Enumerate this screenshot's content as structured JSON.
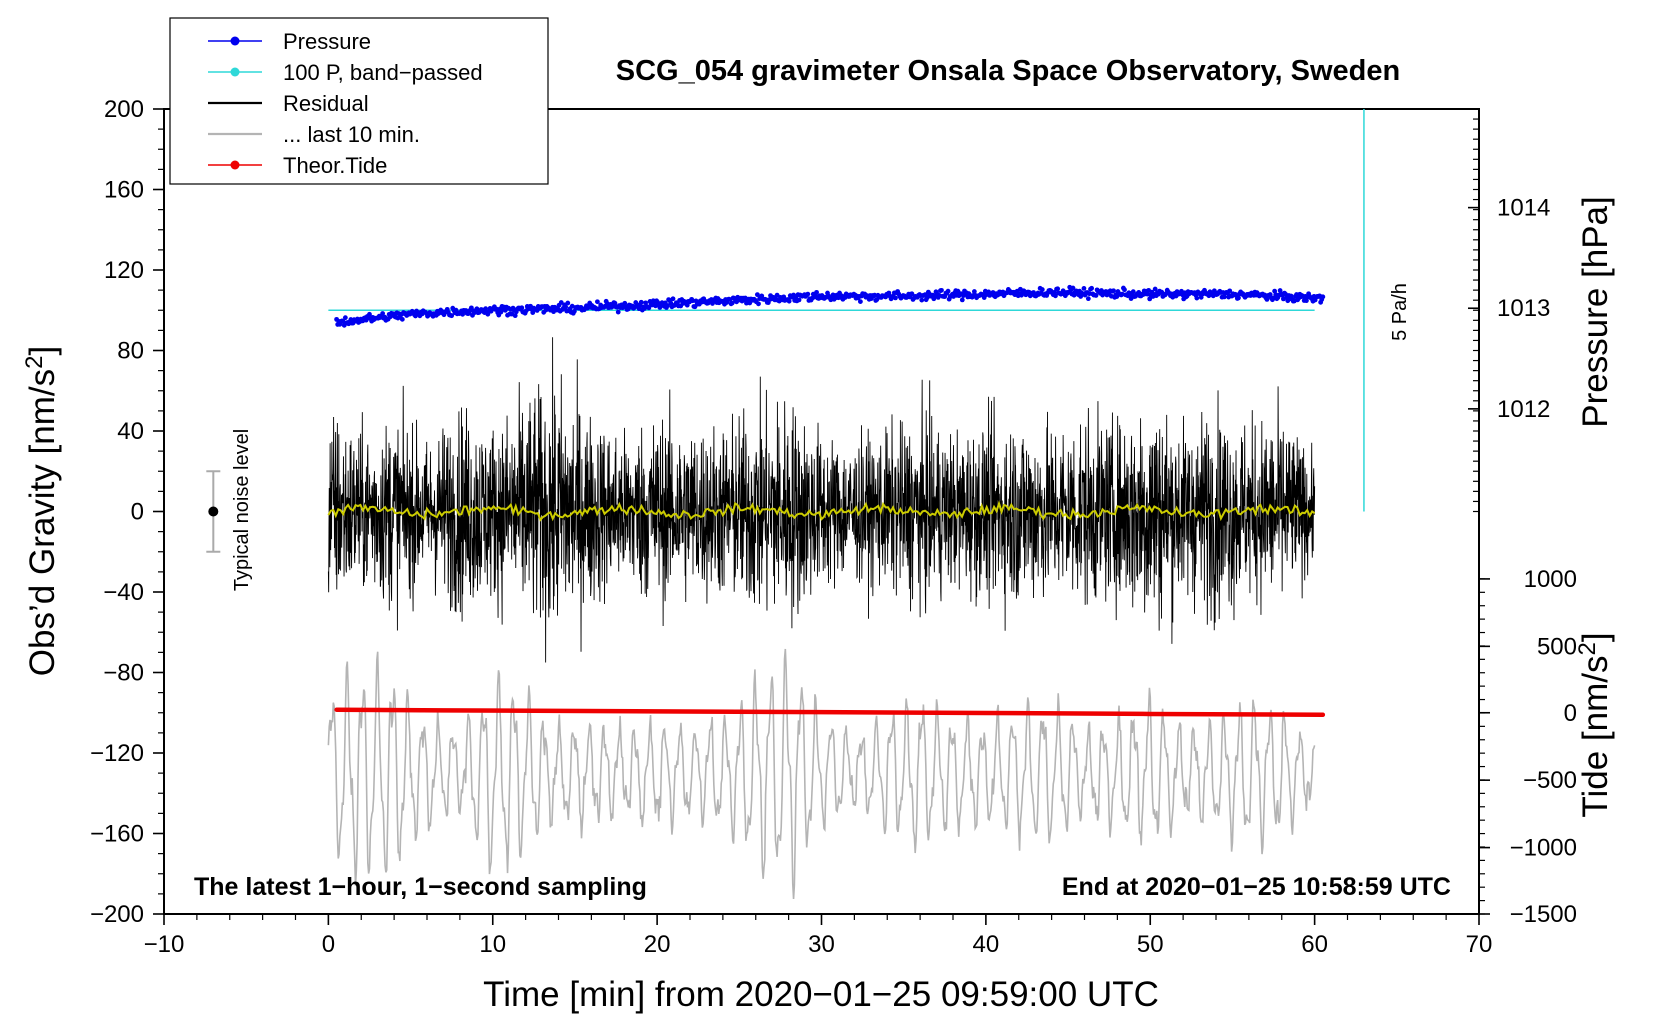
{
  "chart_data": {
    "type": "line",
    "title": "SCG_054 gravimeter Onsala Space Observatory, Sweden",
    "xlabel": "Time [min] from 2020−01−25 09:59:00 UTC",
    "ylabel_left": "Obs’d Gravity [nm/s",
    "ylabel_left_sup": "2",
    "ylabel_left_close": "]",
    "ylabel_pressure": "Pressure [hPa]",
    "ylabel_tide": "Tide [nm/s",
    "ylabel_tide_sup": "2",
    "ylabel_tide_close": "]",
    "xlim": [
      -10,
      70
    ],
    "ylim": [
      -200,
      200
    ],
    "x_ticks": [
      -10,
      0,
      10,
      20,
      30,
      40,
      50,
      60,
      70
    ],
    "x_tick_labels": [
      "−10",
      "0",
      "10",
      "20",
      "30",
      "40",
      "50",
      "60",
      "70"
    ],
    "y_ticks": [
      -200,
      -160,
      -120,
      -80,
      -40,
      0,
      40,
      80,
      120,
      160,
      200
    ],
    "y_tick_labels": [
      "−200",
      "−160",
      "−120",
      "−80",
      "−40",
      "0",
      "40",
      "80",
      "120",
      "160",
      "200"
    ],
    "pressure_ticks": [
      {
        "value": 1012,
        "y_data": 51,
        "label": "1012"
      },
      {
        "value": 1013,
        "y_data": 101,
        "label": "1013"
      },
      {
        "value": 1014,
        "y_data": 151,
        "label": "1014"
      }
    ],
    "tide_ticks": [
      {
        "value": 1000,
        "y_data": -33.5,
        "label": "1000"
      },
      {
        "value": 500,
        "y_data": -67,
        "label": "500"
      },
      {
        "value": 0,
        "y_data": -100,
        "label": "0"
      },
      {
        "value": -500,
        "y_data": -133.5,
        "label": "−500"
      },
      {
        "value": -1000,
        "y_data": -167,
        "label": "−1000"
      },
      {
        "value": -1500,
        "y_data": -200,
        "label": "−1500"
      }
    ],
    "legend": {
      "placement": "top-left",
      "entries": [
        {
          "label": "Pressure",
          "color": "#0000ee",
          "style": "line-dot"
        },
        {
          "label": "100 P, band−passed",
          "color": "#2ed8d8",
          "style": "line-dot"
        },
        {
          "label": "Residual",
          "color": "#000000",
          "style": "line"
        },
        {
          "label": "... last 10 min.",
          "color": "#b4b4b4",
          "style": "line"
        },
        {
          "label": "Theor.Tide",
          "color": "#ee0000",
          "style": "line-dot"
        }
      ]
    },
    "colors": {
      "pressure": "#0000ee",
      "bandpassed": "#2ed8d8",
      "residual": "#000000",
      "last10": "#b4b4b4",
      "tide": "#ee0000",
      "smooth": "#cccc00"
    },
    "series": [
      {
        "name": "Pressure",
        "x": [
          0.5,
          5,
          8,
          10,
          15,
          20,
          25,
          30,
          35,
          40,
          44,
          50,
          55,
          60,
          60.5
        ],
        "values": [
          94,
          98,
          99.5,
          100,
          101,
          103,
          105,
          107,
          107,
          108,
          109,
          108,
          108,
          106,
          106
        ]
      },
      {
        "name": "100 P, band-passed",
        "x": [
          0,
          60
        ],
        "values": [
          100,
          100
        ]
      },
      {
        "name": "Residual",
        "x_range": [
          0,
          60
        ],
        "envelope_x": [
          0,
          2,
          4,
          6,
          8,
          10,
          12,
          14,
          16,
          18,
          20,
          22,
          24,
          26,
          28,
          30,
          32,
          34,
          36,
          38,
          40,
          42,
          44,
          46,
          48,
          50,
          52,
          54,
          56,
          58,
          60
        ],
        "envelope": [
          60,
          45,
          55,
          40,
          60,
          50,
          65,
          75,
          55,
          45,
          55,
          50,
          50,
          60,
          65,
          45,
          40,
          45,
          55,
          45,
          50,
          55,
          50,
          55,
          50,
          70,
          50,
          60,
          50,
          55,
          30
        ],
        "smooth_level": 0
      },
      {
        "name": "... last 10 min.",
        "x_range": [
          0,
          60
        ],
        "center": -130,
        "envelope_x": [
          0,
          2,
          4,
          6,
          8,
          10,
          12,
          14,
          16,
          18,
          20,
          22,
          24,
          26,
          28,
          30,
          32,
          34,
          36,
          38,
          40,
          42,
          44,
          46,
          48,
          50,
          52,
          54,
          56,
          58,
          60
        ],
        "envelope": [
          45,
          60,
          55,
          30,
          20,
          55,
          45,
          25,
          30,
          25,
          30,
          25,
          30,
          55,
          65,
          30,
          20,
          35,
          40,
          30,
          30,
          35,
          40,
          25,
          30,
          40,
          25,
          30,
          40,
          35,
          15
        ]
      },
      {
        "name": "Theor.Tide",
        "x": [
          0.5,
          7,
          20,
          30,
          40,
          50,
          60.5
        ],
        "values": [
          -98.5,
          -98.8,
          -99.3,
          -99.7,
          -100.1,
          -100.6,
          -101
        ]
      }
    ],
    "annotations": {
      "noise_label": "Typical noise level",
      "noise_bar": {
        "x": -7,
        "center": 0,
        "low": -20,
        "high": 20
      },
      "rate_label": "5 Pa/h",
      "rate_line": {
        "x": 63,
        "y_top": 200,
        "y_bottom": 0
      },
      "footer_left": "The latest 1−hour, 1−second sampling",
      "footer_right": "End at 2020−01−25 10:58:59 UTC"
    }
  }
}
